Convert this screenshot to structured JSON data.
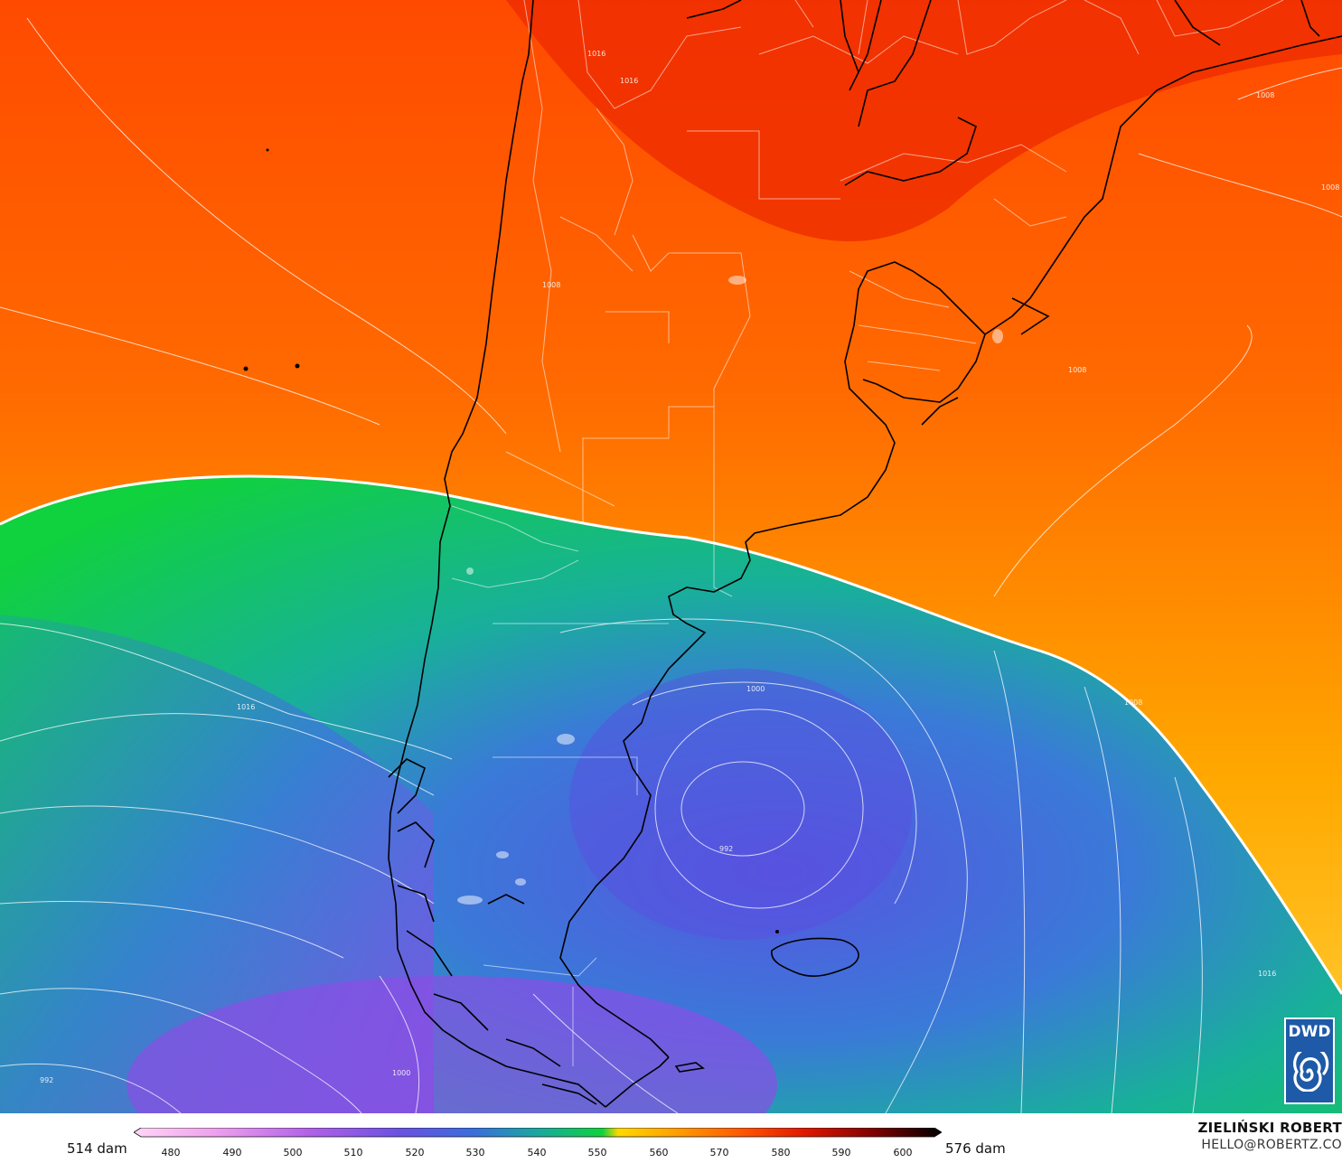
{
  "map": {
    "contour_labels": [
      "1016",
      "1008",
      "1008",
      "1008",
      "1008",
      "1000",
      "992",
      "1016",
      "1000",
      "992",
      "1016",
      "1008",
      "1016"
    ],
    "colors": {
      "dam_576": "#ff4a00",
      "dam_560": "#ffc800",
      "dam_552": "#10d13e",
      "dam_540": "#18a0a8",
      "dam_520": "#5560e0",
      "dam_514": "#8a4ee6"
    }
  },
  "logo": {
    "text": "DWD"
  },
  "legend": {
    "min_label": "514 dam",
    "max_label": "576 dam",
    "ticks": [
      "480",
      "490",
      "500",
      "510",
      "520",
      "530",
      "540",
      "550",
      "560",
      "570",
      "580",
      "590",
      "600"
    ]
  },
  "author": {
    "name": "ZIELIŃSKI ROBERT",
    "email": "HELLO@ROBERTZ.CO"
  }
}
